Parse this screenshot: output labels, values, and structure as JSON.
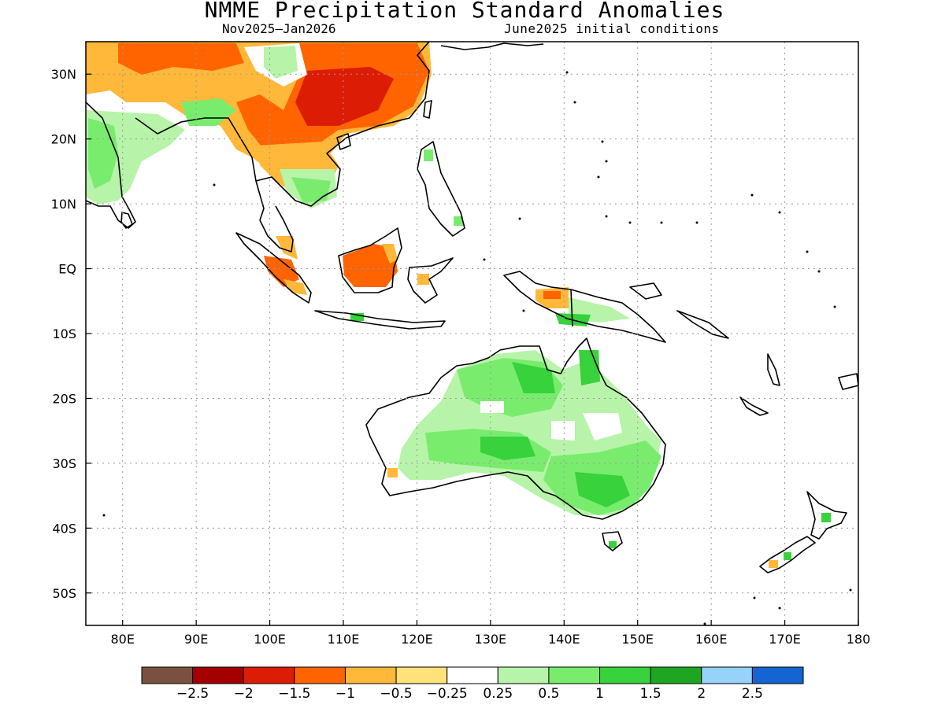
{
  "title": "NMME Precipitation Standard Anomalies",
  "subtitle_left": "Nov2025—Jan2026",
  "subtitle_right": "June2025 initial conditions",
  "axes": {
    "lon_range": [
      75,
      180
    ],
    "lat_range": [
      -55,
      35
    ],
    "lon_ticks": [
      {
        "value": 80,
        "label": "80E"
      },
      {
        "value": 90,
        "label": "90E"
      },
      {
        "value": 100,
        "label": "100E"
      },
      {
        "value": 110,
        "label": "110E"
      },
      {
        "value": 120,
        "label": "120E"
      },
      {
        "value": 130,
        "label": "130E"
      },
      {
        "value": 140,
        "label": "140E"
      },
      {
        "value": 150,
        "label": "150E"
      },
      {
        "value": 160,
        "label": "160E"
      },
      {
        "value": 170,
        "label": "170E"
      },
      {
        "value": 180,
        "label": "180"
      }
    ],
    "lat_ticks": [
      {
        "value": 30,
        "label": "30N"
      },
      {
        "value": 20,
        "label": "20N"
      },
      {
        "value": 10,
        "label": "10N"
      },
      {
        "value": 0,
        "label": "EQ"
      },
      {
        "value": -10,
        "label": "10S"
      },
      {
        "value": -20,
        "label": "20S"
      },
      {
        "value": -30,
        "label": "30S"
      },
      {
        "value": -40,
        "label": "40S"
      },
      {
        "value": -50,
        "label": "50S"
      }
    ],
    "grid": "dotted"
  },
  "legend": {
    "colors": [
      "#7a5140",
      "#a50000",
      "#dd1c05",
      "#ff6400",
      "#ffb83a",
      "#ffe27a",
      "#ffffff",
      "#b7f4a9",
      "#79ec6e",
      "#37d23c",
      "#1ea622",
      "#96d2fa",
      "#1464d2"
    ],
    "labels": [
      "−2.5",
      "−2",
      "−1.5",
      "−1",
      "−0.5",
      "−0.25",
      "0.25",
      "0.5",
      "1",
      "1.5",
      "2",
      "2.5"
    ]
  },
  "colors": {
    "land_outline": "#000000",
    "grid": "#999999"
  }
}
